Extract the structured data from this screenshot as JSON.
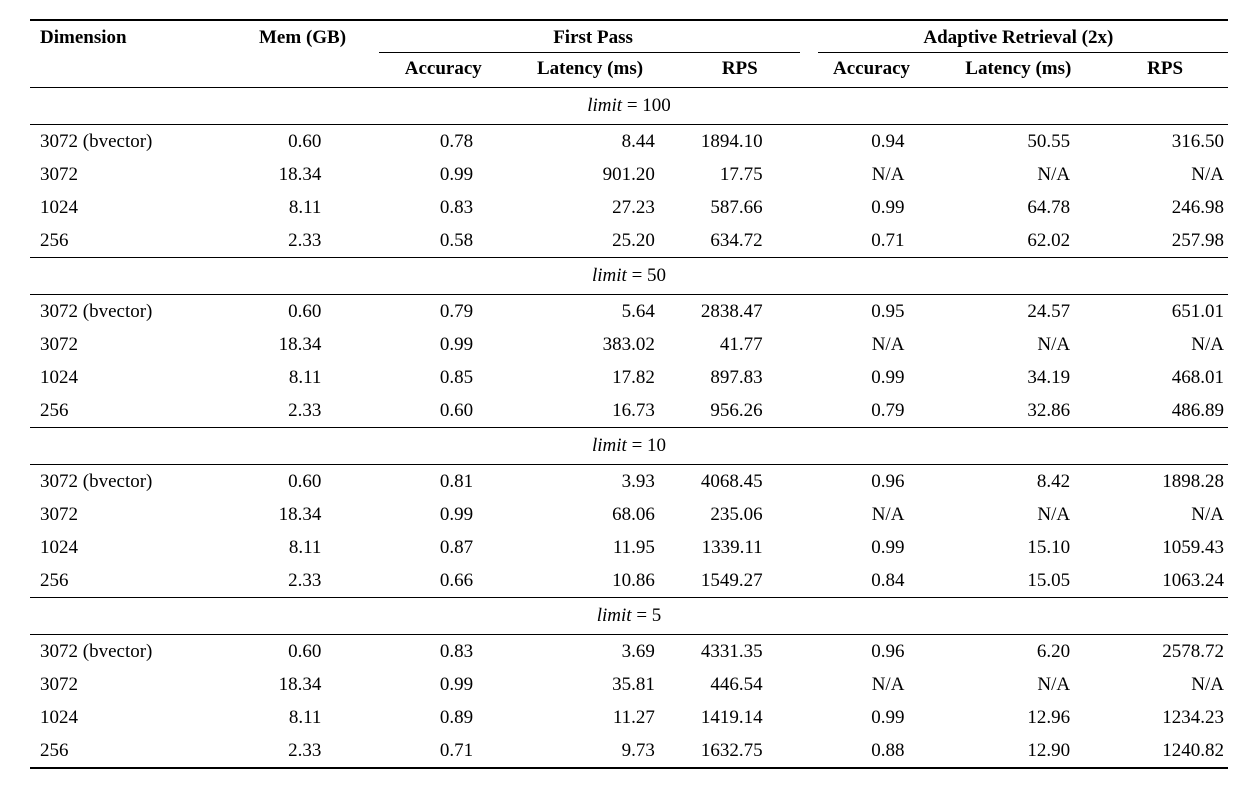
{
  "page": {
    "background": "#ffffff",
    "text_color": "#000000",
    "rule_color": "#000000"
  },
  "table": {
    "headers": {
      "dimension": "Dimension",
      "mem": "Mem (GB)",
      "group_first_pass": "First Pass",
      "group_adaptive": "Adaptive Retrieval (2x)",
      "sub": [
        "Accuracy",
        "Latency (ms)",
        "RPS",
        "Accuracy",
        "Latency (ms)",
        "RPS"
      ]
    },
    "sections": [
      {
        "var": "limit",
        "rest": " = 100",
        "rows": [
          [
            "3072 (bvector)",
            "0.60",
            "0.78",
            "8.44",
            "1894.10",
            "0.94",
            "50.55",
            "316.50"
          ],
          [
            "3072",
            "18.34",
            "0.99",
            "901.20",
            "17.75",
            "N/A",
            "N/A",
            "N/A"
          ],
          [
            "1024",
            "8.11",
            "0.83",
            "27.23",
            "587.66",
            "0.99",
            "64.78",
            "246.98"
          ],
          [
            "256",
            "2.33",
            "0.58",
            "25.20",
            "634.72",
            "0.71",
            "62.02",
            "257.98"
          ]
        ]
      },
      {
        "var": "limit",
        "rest": " = 50",
        "rows": [
          [
            "3072 (bvector)",
            "0.60",
            "0.79",
            "5.64",
            "2838.47",
            "0.95",
            "24.57",
            "651.01"
          ],
          [
            "3072",
            "18.34",
            "0.99",
            "383.02",
            "41.77",
            "N/A",
            "N/A",
            "N/A"
          ],
          [
            "1024",
            "8.11",
            "0.85",
            "17.82",
            "897.83",
            "0.99",
            "34.19",
            "468.01"
          ],
          [
            "256",
            "2.33",
            "0.60",
            "16.73",
            "956.26",
            "0.79",
            "32.86",
            "486.89"
          ]
        ]
      },
      {
        "var": "limit",
        "rest": " = 10",
        "rows": [
          [
            "3072 (bvector)",
            "0.60",
            "0.81",
            "3.93",
            "4068.45",
            "0.96",
            "8.42",
            "1898.28"
          ],
          [
            "3072",
            "18.34",
            "0.99",
            "68.06",
            "235.06",
            "N/A",
            "N/A",
            "N/A"
          ],
          [
            "1024",
            "8.11",
            "0.87",
            "11.95",
            "1339.11",
            "0.99",
            "15.10",
            "1059.43"
          ],
          [
            "256",
            "2.33",
            "0.66",
            "10.86",
            "1549.27",
            "0.84",
            "15.05",
            "1063.24"
          ]
        ]
      },
      {
        "var": "limit",
        "rest": " = 5",
        "rows": [
          [
            "3072 (bvector)",
            "0.60",
            "0.83",
            "3.69",
            "4331.35",
            "0.96",
            "6.20",
            "2578.72"
          ],
          [
            "3072",
            "18.34",
            "0.99",
            "35.81",
            "446.54",
            "N/A",
            "N/A",
            "N/A"
          ],
          [
            "1024",
            "8.11",
            "0.89",
            "11.27",
            "1419.14",
            "0.99",
            "12.96",
            "1234.23"
          ],
          [
            "256",
            "2.33",
            "0.71",
            "9.73",
            "1632.75",
            "0.88",
            "12.90",
            "1240.82"
          ]
        ]
      }
    ]
  }
}
